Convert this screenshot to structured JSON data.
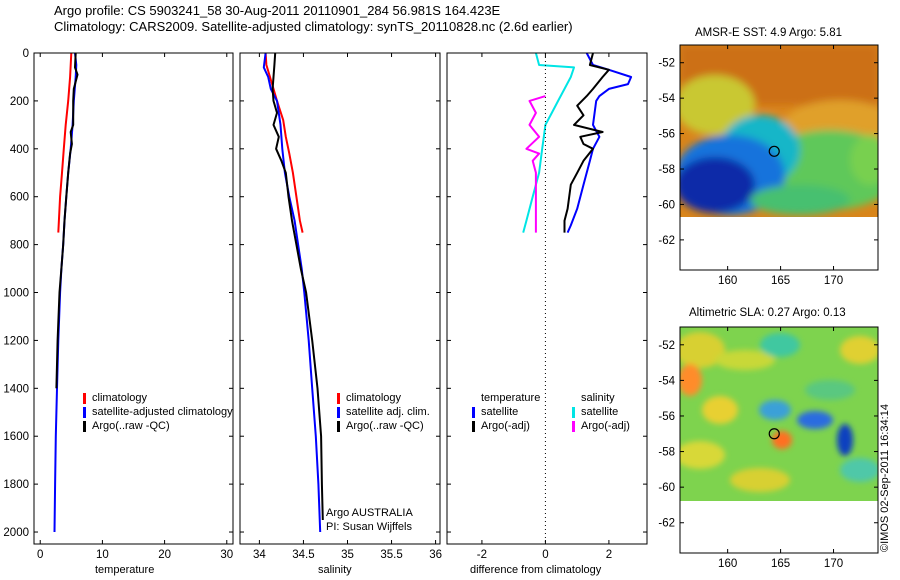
{
  "header": {
    "line1": "Argo profile: CS 5903241_58 30-Aug-2011 20110901_284 56.981S 164.423E",
    "line2": "Climatology: CARS2009. Satellite-adjusted climatology: synTS_20110828.nc (2.6d earlier)"
  },
  "chart_data": [
    {
      "type": "line",
      "panel": "temperature",
      "xlabel": "temperature",
      "ylabel": "",
      "xlim": [
        -1,
        31
      ],
      "ylim": [
        2050,
        0
      ],
      "x_ticks": [
        "0",
        "10",
        "20",
        "30"
      ],
      "x_tick_values": [
        0,
        10,
        20,
        30
      ],
      "y_ticks": [
        "0",
        "200",
        "400",
        "600",
        "800",
        "1000",
        "1200",
        "1400",
        "1600",
        "1800",
        "2000"
      ],
      "y_tick_values": [
        0,
        200,
        400,
        600,
        800,
        1000,
        1200,
        1400,
        1600,
        1800,
        2000
      ],
      "series": [
        {
          "name": "climatology",
          "color": "#ff0000",
          "points": [
            [
              5.0,
              0
            ],
            [
              4.8,
              100
            ],
            [
              4.5,
              200
            ],
            [
              4.1,
              300
            ],
            [
              3.8,
              400
            ],
            [
              3.5,
              500
            ],
            [
              3.2,
              600
            ],
            [
              3.0,
              700
            ],
            [
              2.9,
              750
            ]
          ]
        },
        {
          "name": "satellite-adjusted climatology",
          "color": "#0000ff",
          "points": [
            [
              5.6,
              0
            ],
            [
              5.8,
              50
            ],
            [
              5.7,
              100
            ],
            [
              5.4,
              200
            ],
            [
              5.2,
              300
            ],
            [
              4.9,
              400
            ],
            [
              4.5,
              500
            ],
            [
              4.2,
              600
            ],
            [
              3.9,
              700
            ],
            [
              3.7,
              800
            ],
            [
              3.4,
              900
            ],
            [
              3.2,
              1000
            ],
            [
              2.9,
              1200
            ],
            [
              2.7,
              1400
            ],
            [
              2.5,
              1600
            ],
            [
              2.4,
              1800
            ],
            [
              2.3,
              2000
            ]
          ]
        },
        {
          "name": "Argo(..raw -QC)",
          "color": "#000000",
          "points": [
            [
              5.7,
              0
            ],
            [
              5.6,
              60
            ],
            [
              6.0,
              90
            ],
            [
              5.4,
              150
            ],
            [
              5.3,
              200
            ],
            [
              5.3,
              300
            ],
            [
              4.9,
              330
            ],
            [
              5.1,
              380
            ],
            [
              4.8,
              420
            ],
            [
              4.5,
              500
            ],
            [
              4.2,
              600
            ],
            [
              3.9,
              700
            ],
            [
              3.7,
              800
            ],
            [
              3.4,
              900
            ],
            [
              3.1,
              1000
            ],
            [
              2.8,
              1200
            ],
            [
              2.6,
              1400
            ]
          ]
        }
      ],
      "legend": {
        "placement": "lower-right",
        "entries": [
          "climatology",
          "satellite-adjusted climatology",
          "Argo(..raw -QC)"
        ]
      }
    },
    {
      "type": "line",
      "panel": "salinity",
      "xlabel": "salinity",
      "ylabel": "",
      "xlim": [
        33.78,
        36.05
      ],
      "ylim": [
        2050,
        0
      ],
      "x_ticks": [
        "34",
        "34.5",
        "35",
        "35.5",
        "36"
      ],
      "x_tick_values": [
        34,
        34.5,
        35,
        35.5,
        36
      ],
      "series": [
        {
          "name": "climatology",
          "color": "#ff0000",
          "points": [
            [
              34.07,
              0
            ],
            [
              34.08,
              50
            ],
            [
              34.12,
              100
            ],
            [
              34.16,
              150
            ],
            [
              34.2,
              200
            ],
            [
              34.27,
              280
            ],
            [
              34.3,
              350
            ],
            [
              34.34,
              420
            ],
            [
              34.38,
              500
            ],
            [
              34.42,
              600
            ],
            [
              34.46,
              700
            ],
            [
              34.49,
              750
            ]
          ]
        },
        {
          "name": "satellite adj. clim.",
          "color": "#0000ff",
          "points": [
            [
              34.07,
              0
            ],
            [
              34.05,
              60
            ],
            [
              34.1,
              100
            ],
            [
              34.13,
              150
            ],
            [
              34.2,
              200
            ],
            [
              34.24,
              300
            ],
            [
              34.26,
              400
            ],
            [
              34.29,
              500
            ],
            [
              34.34,
              600
            ],
            [
              34.4,
              700
            ],
            [
              34.44,
              800
            ],
            [
              34.48,
              900
            ],
            [
              34.51,
              1000
            ],
            [
              34.56,
              1200
            ],
            [
              34.6,
              1400
            ],
            [
              34.64,
              1600
            ],
            [
              34.67,
              1800
            ],
            [
              34.69,
              2000
            ]
          ]
        },
        {
          "name": "Argo(..raw -QC)",
          "color": "#000000",
          "points": [
            [
              34.18,
              0
            ],
            [
              34.17,
              50
            ],
            [
              34.16,
              100
            ],
            [
              34.15,
              150
            ],
            [
              34.16,
              200
            ],
            [
              34.2,
              250
            ],
            [
              34.16,
              300
            ],
            [
              34.22,
              350
            ],
            [
              34.19,
              400
            ],
            [
              34.25,
              450
            ],
            [
              34.3,
              500
            ],
            [
              34.33,
              600
            ],
            [
              34.37,
              700
            ],
            [
              34.42,
              800
            ],
            [
              34.47,
              900
            ],
            [
              34.53,
              1000
            ],
            [
              34.6,
              1200
            ],
            [
              34.66,
              1400
            ],
            [
              34.7,
              1600
            ],
            [
              34.71,
              1800
            ],
            [
              34.72,
              1950
            ]
          ]
        }
      ],
      "legend": {
        "placement": "lower-right",
        "entries": [
          "climatology",
          "satellite adj. clim.",
          "Argo(..raw -QC)"
        ]
      },
      "annotations": [
        "Argo AUSTRALIA",
        "PI: Susan Wijffels"
      ]
    },
    {
      "type": "line",
      "panel": "difference",
      "xlabel": "difference from climatology",
      "ylabel": "",
      "xlim": [
        -3.1,
        3.2
      ],
      "ylim": [
        2050,
        0
      ],
      "x_ticks": [
        "-2",
        "0",
        "2"
      ],
      "x_tick_values": [
        -2,
        0,
        2
      ],
      "series": [
        {
          "name": "temperature satellite",
          "color": "#0000ff",
          "points": [
            [
              1.3,
              0
            ],
            [
              1.5,
              50
            ],
            [
              2.0,
              70
            ],
            [
              2.7,
              100
            ],
            [
              2.6,
              130
            ],
            [
              2.0,
              150
            ],
            [
              1.7,
              180
            ],
            [
              1.6,
              200
            ],
            [
              1.5,
              300
            ],
            [
              1.7,
              350
            ],
            [
              1.5,
              400
            ],
            [
              1.4,
              450
            ],
            [
              1.2,
              550
            ],
            [
              1.0,
              650
            ],
            [
              0.8,
              720
            ],
            [
              0.7,
              750
            ]
          ]
        },
        {
          "name": "temperature Argo(-adj)",
          "color": "#000000",
          "points": [
            [
              1.5,
              0
            ],
            [
              1.4,
              50
            ],
            [
              2.0,
              70
            ],
            [
              1.8,
              100
            ],
            [
              1.5,
              150
            ],
            [
              1.3,
              180
            ],
            [
              1.0,
              220
            ],
            [
              1.2,
              260
            ],
            [
              0.9,
              300
            ],
            [
              1.8,
              330
            ],
            [
              1.1,
              350
            ],
            [
              1.2,
              380
            ],
            [
              1.5,
              400
            ],
            [
              1.2,
              450
            ],
            [
              1.0,
              500
            ],
            [
              0.8,
              550
            ],
            [
              0.7,
              650
            ],
            [
              0.6,
              700
            ],
            [
              0.6,
              750
            ]
          ]
        },
        {
          "name": "salinity satellite",
          "color": "#00e5e5",
          "points": [
            [
              -0.3,
              0
            ],
            [
              -0.2,
              50
            ],
            [
              0.9,
              60
            ],
            [
              0.8,
              100
            ],
            [
              0.6,
              150
            ],
            [
              0.4,
              200
            ],
            [
              0.2,
              250
            ],
            [
              0.0,
              300
            ],
            [
              -0.1,
              400
            ],
            [
              -0.2,
              500
            ],
            [
              -0.4,
              600
            ],
            [
              -0.6,
              700
            ],
            [
              -0.7,
              750
            ]
          ]
        },
        {
          "name": "salinity Argo(-adj)",
          "color": "#ff00ff",
          "points": [
            [
              0.0,
              180
            ],
            [
              -0.5,
              200
            ],
            [
              -0.3,
              250
            ],
            [
              -0.5,
              300
            ],
            [
              -0.2,
              350
            ],
            [
              -0.6,
              400
            ],
            [
              -0.2,
              420
            ],
            [
              -0.4,
              450
            ],
            [
              -0.3,
              500
            ],
            [
              -0.3,
              600
            ],
            [
              -0.3,
              700
            ],
            [
              -0.3,
              750
            ]
          ]
        }
      ],
      "legend": {
        "placement": "lower-center",
        "headers": [
          "temperature",
          "salinity"
        ],
        "entries": [
          "satellite",
          "Argo(-adj)",
          "satellite",
          "Argo(-adj)"
        ]
      }
    },
    {
      "type": "heatmap",
      "panel": "AMSR-E SST",
      "title": "AMSR-E SST: 4.9  Argo: 5.81",
      "xlim": [
        155.5,
        174.2
      ],
      "ylim": [
        -63.7,
        -51
      ],
      "x_ticks": [
        "160",
        "165",
        "170"
      ],
      "x_tick_values": [
        160,
        165,
        170
      ],
      "y_ticks": [
        "-52",
        "-54",
        "-56",
        "-58",
        "-60",
        "-62"
      ],
      "y_tick_values": [
        -52,
        -54,
        -56,
        -58,
        -60,
        -62
      ],
      "marker": {
        "lon": 164.4,
        "lat": -57.0
      }
    },
    {
      "type": "heatmap",
      "panel": "Altimetric SLA",
      "title": "Altimetric SLA: 0.27  Argo: 0.13",
      "xlim": [
        155.5,
        174.2
      ],
      "ylim": [
        -63.7,
        -51
      ],
      "x_ticks": [
        "160",
        "165",
        "170"
      ],
      "x_tick_values": [
        160,
        165,
        170
      ],
      "y_ticks": [
        "-52",
        "-54",
        "-56",
        "-58",
        "-60",
        "-62"
      ],
      "y_tick_values": [
        -52,
        -54,
        -56,
        -58,
        -60,
        -62
      ],
      "marker": {
        "lon": 164.4,
        "lat": -57.0
      }
    }
  ],
  "credit": "©IMOS 02-Sep-2011 16:34:14"
}
